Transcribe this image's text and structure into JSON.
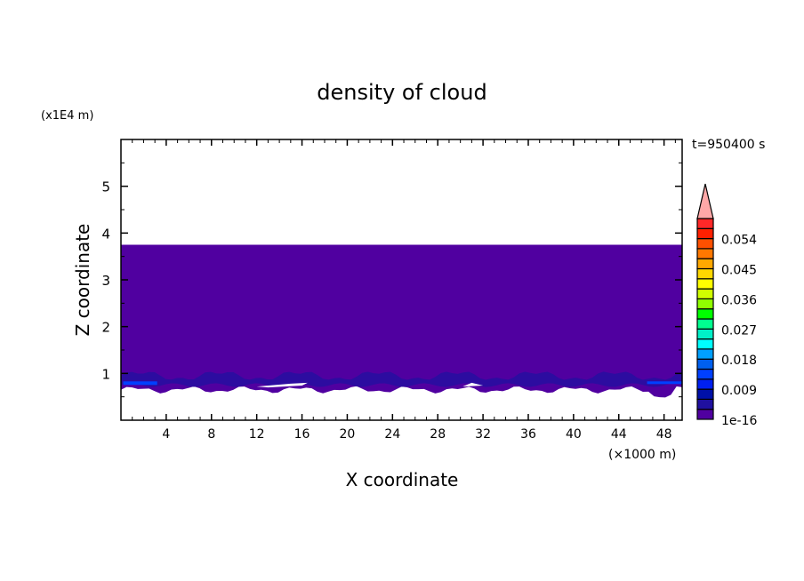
{
  "chart_data": {
    "type": "heatmap",
    "title": "density of cloud",
    "xlabel": "X coordinate",
    "ylabel": "Z coordinate",
    "x_unit": "(×1000 m)",
    "y_unit": "(x1E4 m)",
    "time_label": "t=950400 s",
    "xlim": [
      0,
      49.6
    ],
    "ylim": [
      0,
      6
    ],
    "x_ticks": [
      4,
      8,
      12,
      16,
      20,
      24,
      28,
      32,
      36,
      40,
      44,
      48
    ],
    "y_ticks": [
      1,
      2,
      3,
      4,
      5
    ],
    "colorbar": {
      "levels_min": 1e-16,
      "step": 0.003,
      "tick_labels": [
        "1e-16",
        "0.009",
        "0.018",
        "0.027",
        "0.036",
        "0.045",
        "0.054"
      ],
      "colors": [
        "#5000a0",
        "#2010a0",
        "#0010a8",
        "#0020f0",
        "#0040ff",
        "#0060f0",
        "#00a0ff",
        "#00ffff",
        "#00f0c8",
        "#00ff90",
        "#00ff00",
        "#90ff00",
        "#d0ff00",
        "#ffff00",
        "#ffd800",
        "#ffa800",
        "#ff7800",
        "#ff5000",
        "#ff2000",
        "#ff2828"
      ],
      "extend_color": "#ffa8a8"
    },
    "field": {
      "cloud_top": 3.75,
      "cloud_base_approx": 0.65,
      "dominant_level_color": "#5000a0",
      "secondary_level_color": "#2010a0",
      "max_level_color_near_base": "#0040ff"
    }
  }
}
